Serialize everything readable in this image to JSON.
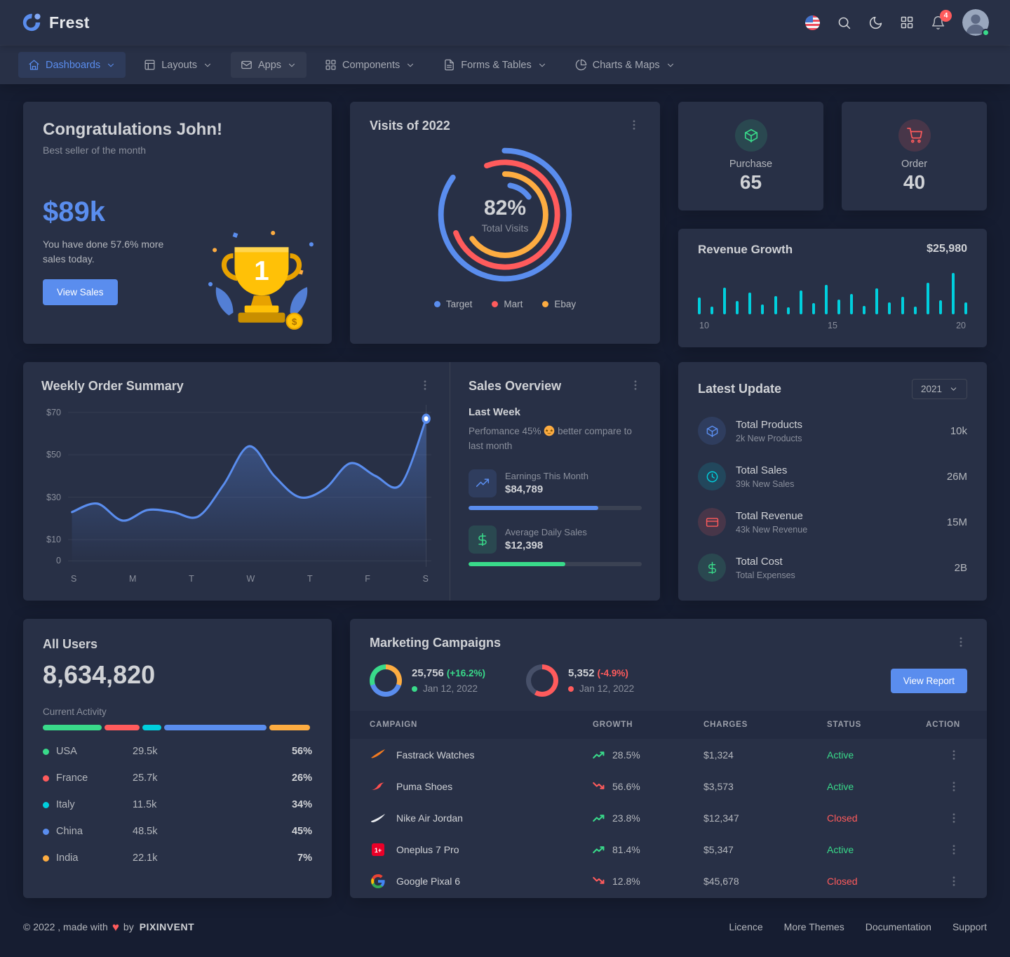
{
  "brand": {
    "name": "Frest"
  },
  "navbar": {
    "icons": [
      "us-flag-icon",
      "search-icon",
      "moon-icon",
      "grid-icon",
      "bell-icon",
      "avatar"
    ],
    "notification_count": "4"
  },
  "menu": {
    "items": [
      {
        "label": "Dashboards",
        "icon": "home-icon",
        "active": true
      },
      {
        "label": "Layouts",
        "icon": "layout-icon"
      },
      {
        "label": "Apps",
        "icon": "mail-icon"
      },
      {
        "label": "Components",
        "icon": "components-grid-icon"
      },
      {
        "label": "Forms & Tables",
        "icon": "file-text-icon"
      },
      {
        "label": "Charts & Maps",
        "icon": "pie-chart-icon"
      }
    ]
  },
  "congrats": {
    "title": "Congratulations John!",
    "subtitle": "Best seller of the month",
    "amount": "$89k",
    "description": "You have done 57.6% more sales today.",
    "button": "View Sales"
  },
  "visits": {
    "title": "Visits of 2022",
    "chart_data": {
      "type": "donut",
      "center_percent": "82%",
      "center_label": "Total Visits",
      "rings": [
        {
          "name": "Target",
          "color": "#5a8dee",
          "value": 85,
          "rotate": -90
        },
        {
          "name": "Mart",
          "color": "#ff5b5c",
          "value": 75,
          "rotate": -110
        },
        {
          "name": "Ebay",
          "color": "#fdac41",
          "value": 65,
          "rotate": -90
        },
        {
          "name": "Target",
          "color": "#5a8dee",
          "value": 12,
          "rotate": -80
        }
      ]
    }
  },
  "stats": [
    {
      "label": "Purchase",
      "value": "65",
      "color": "#39da8a",
      "icon": "package-box-icon"
    },
    {
      "label": "Order",
      "value": "40",
      "color": "#ff5b5c",
      "icon": "shopping-cart-icon"
    }
  ],
  "revenue_growth": {
    "title": "Revenue Growth",
    "amount": "$25,980",
    "chart_data": {
      "type": "bar",
      "color": "#00cfdd",
      "x_ticks": [
        "10",
        "15",
        "20"
      ],
      "values": [
        38,
        18,
        62,
        30,
        50,
        22,
        42,
        16,
        55,
        26,
        68,
        34,
        46,
        20,
        60,
        28,
        40,
        18,
        72,
        32,
        95,
        28
      ]
    }
  },
  "weekly_order": {
    "title": "Weekly Order Summary",
    "chart_data": {
      "type": "line",
      "color": "#5a8dee",
      "ymax": 70,
      "x_ticks": [
        "S",
        "M",
        "T",
        "W",
        "T",
        "F",
        "S"
      ],
      "y_ticks": [
        {
          "label": "$70",
          "value": 70
        },
        {
          "label": "$50",
          "value": 50
        },
        {
          "label": "$30",
          "value": 30
        },
        {
          "label": "$10",
          "value": 10
        },
        {
          "label": "0",
          "value": 0
        }
      ],
      "values": [
        23,
        27,
        19,
        24,
        23,
        21,
        36,
        54,
        40,
        30,
        34,
        46,
        40,
        36,
        67
      ]
    }
  },
  "sales_overview": {
    "title": "Sales Overview",
    "subtitle": "Last Week",
    "desc_pre": "Perfomance 45%",
    "desc_post": "better compare to last month",
    "emoji": "star-struck-emoji",
    "items": [
      {
        "label": "Earnings This Month",
        "value": "$84,789",
        "progress": 75,
        "color": "#5a8dee",
        "icon": "trending-up-icon"
      },
      {
        "label": "Average Daily Sales",
        "value": "$12,398",
        "progress": 56,
        "color": "#39da8a",
        "icon": "dollar-icon"
      }
    ]
  },
  "latest_update": {
    "title": "Latest Update",
    "year": "2021",
    "items": [
      {
        "label": "Total Products",
        "sub": "2k New Products",
        "value": "10k",
        "icon": "cube-icon",
        "color": "#5a8dee"
      },
      {
        "label": "Total Sales",
        "sub": "39k New Sales",
        "value": "26M",
        "icon": "clock-icon",
        "color": "#00cfdd"
      },
      {
        "label": "Total Revenue",
        "sub": "43k New Revenue",
        "value": "15M",
        "icon": "credit-card-icon",
        "color": "#ff5b5c"
      },
      {
        "label": "Total Cost",
        "sub": "Total Expenses",
        "value": "2B",
        "icon": "dollar-icon",
        "color": "#39da8a"
      }
    ]
  },
  "all_users": {
    "title": "All Users",
    "count": "8,634,820",
    "activity_label": "Current Activity",
    "segments": [
      {
        "color": "#39da8a",
        "pct": 22
      },
      {
        "color": "#ff5b5c",
        "pct": 13
      },
      {
        "color": "#00cfdd",
        "pct": 7
      },
      {
        "color": "#5a8dee",
        "pct": 38
      },
      {
        "color": "#fdac41",
        "pct": 15
      }
    ],
    "countries": [
      {
        "name": "USA",
        "users": "29.5k",
        "percent": "56%",
        "color": "#39da8a"
      },
      {
        "name": "France",
        "users": "25.7k",
        "percent": "26%",
        "color": "#ff5b5c"
      },
      {
        "name": "Italy",
        "users": "11.5k",
        "percent": "34%",
        "color": "#00cfdd"
      },
      {
        "name": "China",
        "users": "48.5k",
        "percent": "45%",
        "color": "#5a8dee"
      },
      {
        "name": "India",
        "users": "22.1k",
        "percent": "7%",
        "color": "#fdac41"
      }
    ]
  },
  "marketing": {
    "title": "Marketing Campaigns",
    "button": "View Report",
    "stats": [
      {
        "value": "25,756",
        "change": "(+16.2%)",
        "change_color": "#39da8a",
        "date": "Jan 12, 2022",
        "segments": [
          {
            "color": "#fdac41",
            "pct": 30
          },
          {
            "color": "#5a8dee",
            "pct": 40
          },
          {
            "color": "#39da8a",
            "pct": 30
          }
        ]
      },
      {
        "value": "5,352",
        "change": "(-4.9%)",
        "change_color": "#ff5b5c",
        "date": "Jan 12, 2022",
        "segments": [
          {
            "color": "#ff5b5c",
            "pct": 58
          },
          {
            "color": "#475069",
            "pct": 42
          }
        ]
      }
    ],
    "table": {
      "headers": [
        "CAMPAIGN",
        "GROWTH",
        "CHARGES",
        "STATUS",
        "ACTION"
      ],
      "rows": [
        {
          "campaign": "Fastrack Watches",
          "logo": "fastrack-logo-icon",
          "growth": "28.5%",
          "trend": "up",
          "charges": "$1,324",
          "status": "Active",
          "status_color": "#39da8a"
        },
        {
          "campaign": "Puma Shoes",
          "logo": "puma-logo-icon",
          "growth": "56.6%",
          "trend": "down",
          "charges": "$3,573",
          "status": "Active",
          "status_color": "#39da8a"
        },
        {
          "campaign": "Nike Air Jordan",
          "logo": "nike-logo-icon",
          "growth": "23.8%",
          "trend": "up",
          "charges": "$12,347",
          "status": "Closed",
          "status_color": "#ff5b5c"
        },
        {
          "campaign": "Oneplus 7 Pro",
          "logo": "oneplus-logo-icon",
          "growth": "81.4%",
          "trend": "up",
          "charges": "$5,347",
          "status": "Active",
          "status_color": "#39da8a"
        },
        {
          "campaign": "Google Pixal 6",
          "logo": "google-logo-icon",
          "growth": "12.8%",
          "trend": "down",
          "charges": "$45,678",
          "status": "Closed",
          "status_color": "#ff5b5c"
        }
      ]
    }
  },
  "footer": {
    "copyright": "© 2022 , made with",
    "heart": "♥",
    "by": "by",
    "brand": "PIXINVENT",
    "links": [
      "Licence",
      "More Themes",
      "Documentation",
      "Support"
    ]
  }
}
